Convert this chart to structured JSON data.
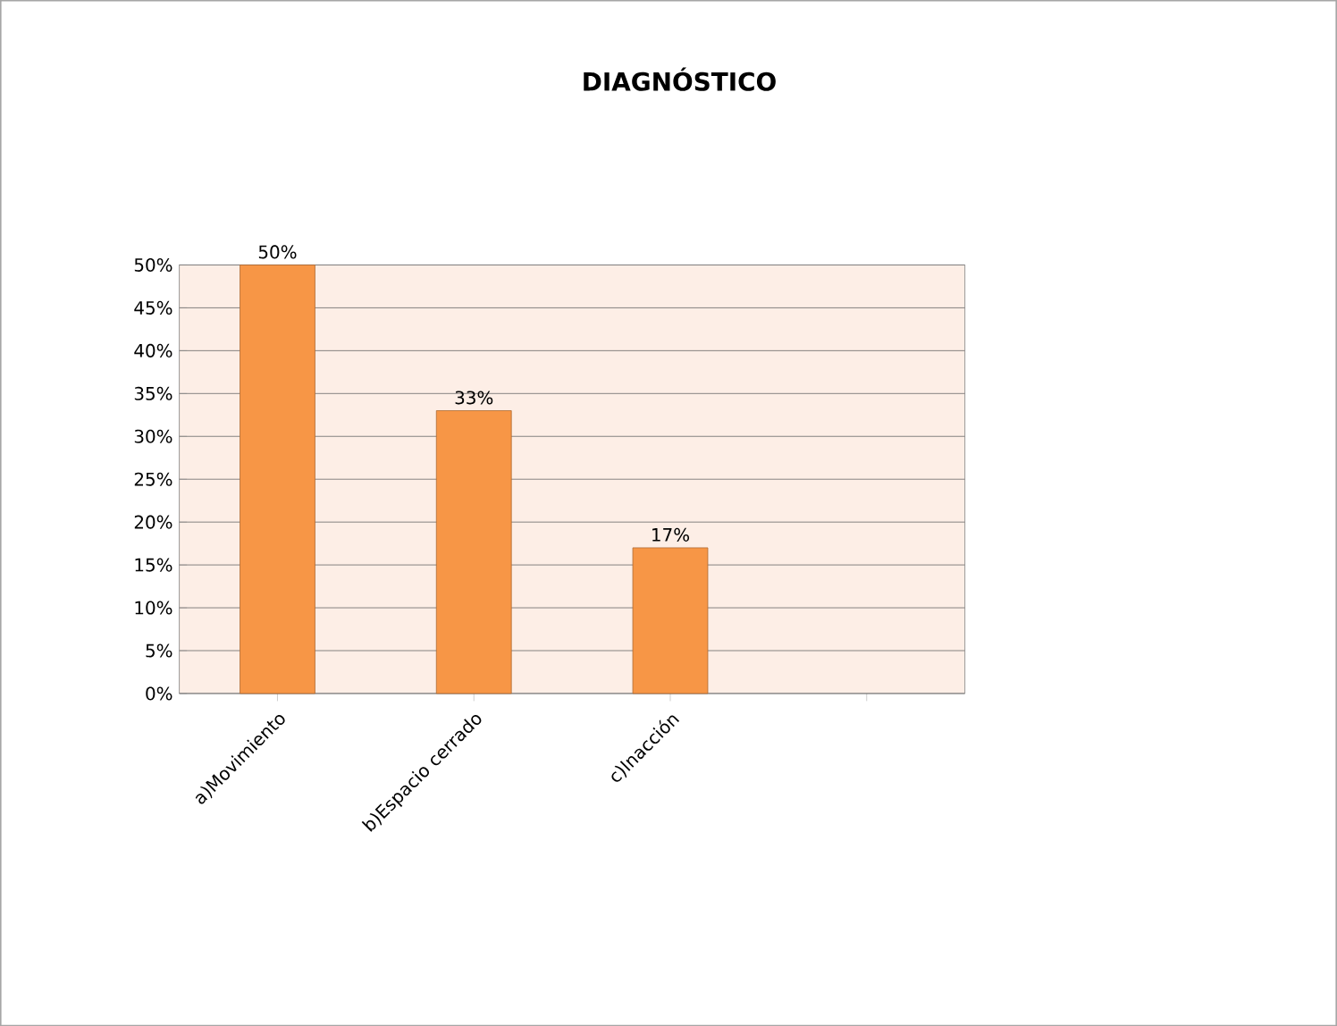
{
  "chart_data": {
    "type": "bar",
    "title": "DIAGNÓSTICO",
    "categories": [
      "a)Movimiento",
      "b)Espacio cerrado",
      "c)Inacción",
      null
    ],
    "values": [
      50,
      33,
      17,
      null
    ],
    "value_labels": [
      "50%",
      "33%",
      "17%",
      null
    ],
    "color": "#f79646",
    "ylim": [
      0,
      50
    ],
    "yticks": [
      {
        "value": 0,
        "label": "0%"
      },
      {
        "value": 5,
        "label": "5%"
      },
      {
        "value": 10,
        "label": "10%"
      },
      {
        "value": 15,
        "label": "15%"
      },
      {
        "value": 20,
        "label": "20%"
      },
      {
        "value": 25,
        "label": "25%"
      },
      {
        "value": 30,
        "label": "30%"
      },
      {
        "value": 35,
        "label": "35%"
      },
      {
        "value": 40,
        "label": "40%"
      },
      {
        "value": 45,
        "label": "45%"
      },
      {
        "value": 50,
        "label": "50%"
      }
    ],
    "grid": true
  }
}
